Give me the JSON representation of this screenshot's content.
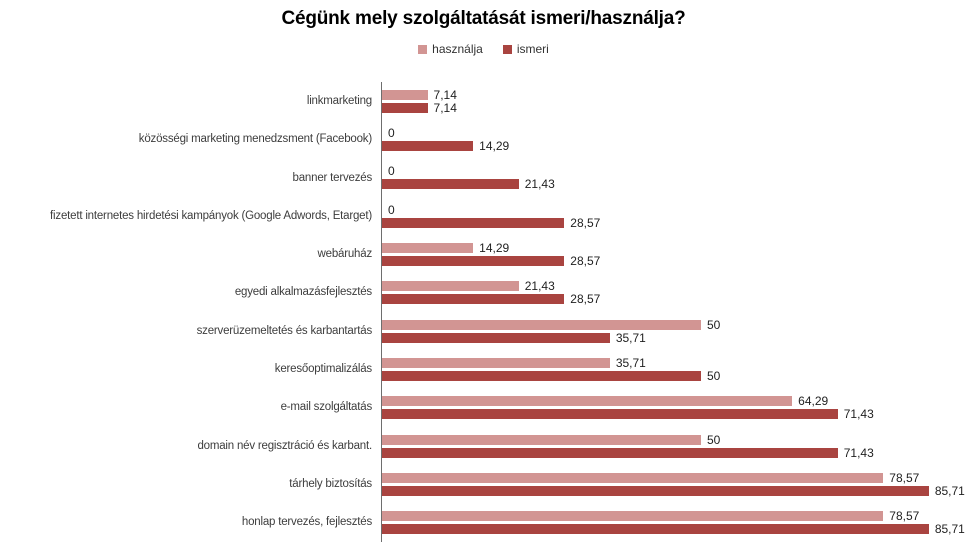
{
  "chart_data": {
    "type": "bar",
    "orientation": "horizontal",
    "title": "Cégünk mely szolgáltatását ismeri/használja?",
    "legend_position": "top",
    "grid": false,
    "x_axis": {
      "min": 0,
      "max": 91.8,
      "tick_labels_visible": false
    },
    "value_format": "comma-decimal",
    "categories": [
      "linkmarketing",
      "közösségi marketing menedzsment (Facebook)",
      "banner tervezés",
      "fizetett internetes hirdetési kampányok (Google Adwords, Etarget)",
      "webáruház",
      "egyedi alkalmazásfejlesztés",
      "szerverüzemeltetés és karbantartás",
      "keresőoptimalizálás",
      "e-mail szolgáltatás",
      "domain név regisztráció és karbant.",
      "tárhely biztosítás",
      "honlap tervezés, fejlesztés"
    ],
    "series": [
      {
        "name": "használja",
        "key": "hasznalja",
        "color": "#D29593",
        "values": [
          7.14,
          0,
          0,
          0,
          14.29,
          21.43,
          50,
          35.71,
          64.29,
          50,
          78.57,
          78.57
        ],
        "labels": [
          "7,14",
          "0",
          "0",
          "0",
          "14,29",
          "21,43",
          "50",
          "35,71",
          "64,29",
          "50",
          "78,57",
          "78,57"
        ]
      },
      {
        "name": "ismeri",
        "key": "ismeri",
        "color": "#A94440",
        "values": [
          7.14,
          14.29,
          21.43,
          28.57,
          28.57,
          28.57,
          35.71,
          50,
          71.43,
          71.43,
          85.71,
          85.71
        ],
        "labels": [
          "7,14",
          "14,29",
          "21,43",
          "28,57",
          "28,57",
          "28,57",
          "35,71",
          "50",
          "71,43",
          "71,43",
          "85,71",
          "85,71"
        ]
      }
    ],
    "colors": {
      "axis_line": "#6e6e6e",
      "category_text": "#3d3d3d",
      "value_text": "#1f1f1f",
      "title_text": "#000000"
    }
  }
}
